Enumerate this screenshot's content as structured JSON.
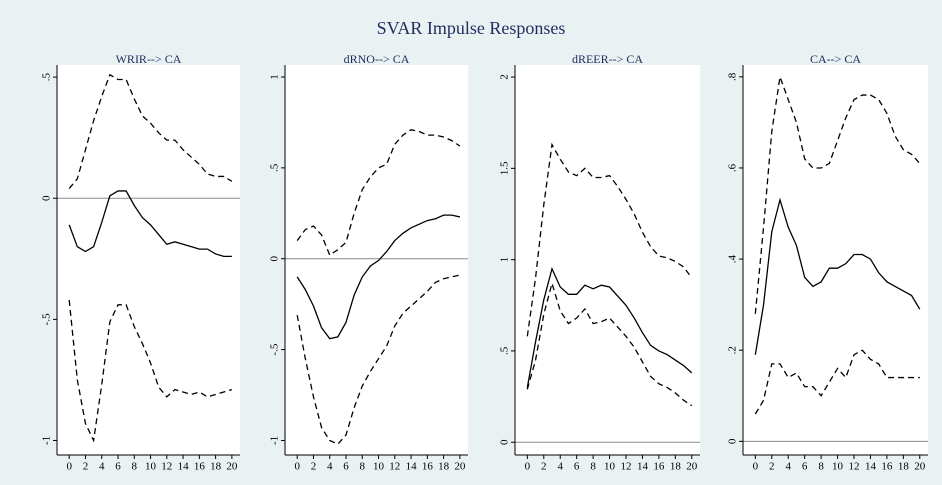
{
  "title": "SVAR Impulse Responses",
  "chart_data": [
    {
      "type": "line",
      "title": "WRIR--> CA",
      "x": [
        0,
        1,
        2,
        3,
        4,
        5,
        6,
        7,
        8,
        9,
        10,
        11,
        12,
        13,
        14,
        15,
        16,
        17,
        18,
        19,
        20
      ],
      "xlim": [
        -1.5,
        21
      ],
      "xticks": [
        0,
        2,
        4,
        6,
        8,
        10,
        12,
        14,
        16,
        18,
        20
      ],
      "ylim": [
        -1.06,
        0.55
      ],
      "yticks": [
        {
          "value": 0.5,
          "label": ".5"
        },
        0,
        {
          "value": -0.5,
          "label": "-.5"
        },
        -1
      ],
      "hline": 0,
      "series": [
        {
          "color": "#000000",
          "dash": "solid",
          "values": [
            -0.11,
            -0.2,
            -0.22,
            -0.2,
            -0.1,
            0.01,
            0.03,
            0.03,
            -0.03,
            -0.08,
            -0.11,
            -0.15,
            -0.19,
            -0.18,
            -0.19,
            -0.2,
            -0.21,
            -0.21,
            -0.23,
            -0.24,
            -0.24
          ]
        },
        {
          "color": "#000000",
          "dash": "dashed",
          "values": [
            0.04,
            0.08,
            0.2,
            0.32,
            0.42,
            0.51,
            0.49,
            0.49,
            0.41,
            0.34,
            0.31,
            0.27,
            0.24,
            0.24,
            0.2,
            0.17,
            0.14,
            0.1,
            0.09,
            0.09,
            0.07
          ]
        },
        {
          "color": "#000000",
          "dash": "dashed",
          "values": [
            -0.42,
            -0.75,
            -0.93,
            -1.0,
            -0.77,
            -0.51,
            -0.44,
            -0.44,
            -0.53,
            -0.6,
            -0.68,
            -0.78,
            -0.82,
            -0.79,
            -0.8,
            -0.81,
            -0.8,
            -0.82,
            -0.81,
            -0.8,
            -0.79
          ]
        }
      ]
    },
    {
      "type": "line",
      "title": "dRNO--> CA",
      "x": [
        0,
        1,
        2,
        3,
        4,
        5,
        6,
        7,
        8,
        9,
        10,
        11,
        12,
        13,
        14,
        15,
        16,
        17,
        18,
        19,
        20
      ],
      "xlim": [
        -1.5,
        21
      ],
      "xticks": [
        0,
        2,
        4,
        6,
        8,
        10,
        12,
        14,
        16,
        18,
        20
      ],
      "ylim": [
        -1.08,
        1.066
      ],
      "yticks": [
        1,
        {
          "value": 0.5,
          "label": ".5"
        },
        0,
        {
          "value": -0.5,
          "label": "-.5"
        },
        -1
      ],
      "hline": 0,
      "series": [
        {
          "color": "#000000",
          "dash": "solid",
          "values": [
            -0.1,
            -0.17,
            -0.26,
            -0.38,
            -0.44,
            -0.43,
            -0.35,
            -0.2,
            -0.1,
            -0.04,
            -0.01,
            0.04,
            0.1,
            0.14,
            0.17,
            0.19,
            0.21,
            0.22,
            0.24,
            0.24,
            0.23
          ]
        },
        {
          "color": "#000000",
          "dash": "dashed",
          "values": [
            0.1,
            0.16,
            0.18,
            0.13,
            0.02,
            0.05,
            0.09,
            0.25,
            0.38,
            0.45,
            0.5,
            0.52,
            0.63,
            0.68,
            0.71,
            0.7,
            0.68,
            0.68,
            0.67,
            0.65,
            0.62
          ]
        },
        {
          "color": "#000000",
          "dash": "dashed",
          "values": [
            -0.31,
            -0.55,
            -0.76,
            -0.93,
            -1.0,
            -1.02,
            -0.97,
            -0.82,
            -0.7,
            -0.62,
            -0.55,
            -0.48,
            -0.37,
            -0.3,
            -0.26,
            -0.22,
            -0.18,
            -0.13,
            -0.11,
            -0.1,
            -0.09
          ]
        }
      ]
    },
    {
      "type": "line",
      "title": "dREER--> CA",
      "x": [
        0,
        1,
        2,
        3,
        4,
        5,
        6,
        7,
        8,
        9,
        10,
        11,
        12,
        13,
        14,
        15,
        16,
        17,
        18,
        19,
        20
      ],
      "xlim": [
        -1.5,
        21
      ],
      "xticks": [
        0,
        2,
        4,
        6,
        8,
        10,
        12,
        14,
        16,
        18,
        20
      ],
      "ylim": [
        -0.07,
        2.066
      ],
      "yticks": [
        2,
        {
          "value": 1.5,
          "label": "1.5"
        },
        1,
        {
          "value": 0.5,
          "label": ".5"
        },
        0
      ],
      "hline": 0,
      "series": [
        {
          "color": "#000000",
          "dash": "solid",
          "values": [
            0.3,
            0.55,
            0.78,
            0.95,
            0.85,
            0.81,
            0.81,
            0.86,
            0.84,
            0.86,
            0.85,
            0.8,
            0.75,
            0.68,
            0.6,
            0.53,
            0.5,
            0.48,
            0.45,
            0.42,
            0.38
          ]
        },
        {
          "color": "#000000",
          "dash": "dashed",
          "values": [
            0.58,
            0.9,
            1.3,
            1.63,
            1.55,
            1.48,
            1.46,
            1.5,
            1.45,
            1.45,
            1.46,
            1.4,
            1.33,
            1.25,
            1.15,
            1.07,
            1.02,
            1.01,
            0.99,
            0.96,
            0.9
          ]
        },
        {
          "color": "#000000",
          "dash": "dashed",
          "values": [
            0.29,
            0.45,
            0.7,
            0.87,
            0.72,
            0.65,
            0.68,
            0.73,
            0.65,
            0.66,
            0.68,
            0.63,
            0.58,
            0.52,
            0.44,
            0.36,
            0.32,
            0.3,
            0.27,
            0.23,
            0.2
          ]
        }
      ]
    },
    {
      "type": "line",
      "title": "CA--> CA",
      "x": [
        0,
        1,
        2,
        3,
        4,
        5,
        6,
        7,
        8,
        9,
        10,
        11,
        12,
        13,
        14,
        15,
        16,
        17,
        18,
        19,
        20
      ],
      "xlim": [
        -1.5,
        21
      ],
      "xticks": [
        0,
        2,
        4,
        6,
        8,
        10,
        12,
        14,
        16,
        18,
        20
      ],
      "ylim": [
        -0.03,
        0.826
      ],
      "yticks": [
        {
          "value": 0.8,
          "label": ".8"
        },
        {
          "value": 0.6,
          "label": ".6"
        },
        {
          "value": 0.4,
          "label": ".4"
        },
        {
          "value": 0.2,
          "label": ".2"
        },
        0
      ],
      "hline": 0,
      "series": [
        {
          "color": "#000000",
          "dash": "solid",
          "values": [
            0.19,
            0.3,
            0.46,
            0.53,
            0.47,
            0.43,
            0.36,
            0.34,
            0.35,
            0.38,
            0.38,
            0.39,
            0.41,
            0.41,
            0.4,
            0.37,
            0.35,
            0.34,
            0.33,
            0.32,
            0.29
          ]
        },
        {
          "color": "#000000",
          "dash": "dashed",
          "values": [
            0.28,
            0.47,
            0.68,
            0.8,
            0.75,
            0.7,
            0.62,
            0.6,
            0.6,
            0.61,
            0.66,
            0.71,
            0.75,
            0.76,
            0.76,
            0.75,
            0.72,
            0.67,
            0.64,
            0.63,
            0.61
          ]
        },
        {
          "color": "#000000",
          "dash": "dashed",
          "values": [
            0.06,
            0.09,
            0.17,
            0.17,
            0.14,
            0.15,
            0.12,
            0.12,
            0.1,
            0.13,
            0.16,
            0.14,
            0.19,
            0.2,
            0.18,
            0.17,
            0.14,
            0.14,
            0.14,
            0.14,
            0.14
          ]
        }
      ]
    }
  ]
}
